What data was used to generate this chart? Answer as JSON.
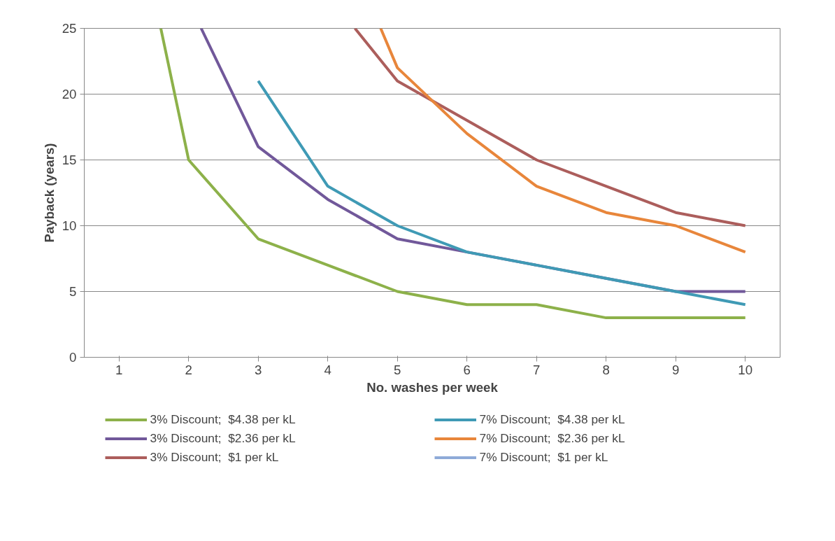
{
  "chart_data": {
    "type": "line",
    "xlabel": "No. washes per week",
    "ylabel": "Payback (years)",
    "xlim": [
      0.5,
      10.5
    ],
    "xticks": [
      1,
      2,
      3,
      4,
      5,
      6,
      7,
      8,
      9,
      10
    ],
    "ylim": [
      0,
      25
    ],
    "yticks": [
      0,
      5,
      10,
      15,
      20,
      25
    ],
    "grid": "y",
    "legend": "bottom",
    "marker": "none",
    "line_style": "solid",
    "series": [
      {
        "name": "3% Discount;  $4.38 per kL",
        "color": "#8db14a",
        "x": [
          1.6,
          2,
          3,
          4,
          5,
          6,
          7,
          8,
          9,
          10
        ],
        "values": [
          25,
          15,
          9,
          7,
          5,
          4,
          4,
          3,
          3,
          3
        ]
      },
      {
        "name": "3% Discount;  $2.36 per kL",
        "color": "#71589a",
        "x": [
          2.18,
          3,
          4,
          5,
          6,
          7,
          8,
          9,
          10
        ],
        "values": [
          25,
          16,
          12,
          9,
          8,
          7,
          6,
          5,
          5
        ]
      },
      {
        "name": "3% Discount;  $1 per kL",
        "color": "#ac5e5c",
        "x": [
          4.39,
          5,
          6,
          7,
          8,
          9,
          10
        ],
        "values": [
          25,
          21,
          18,
          15,
          13,
          11,
          10
        ]
      },
      {
        "name": "7% Discount;  $4.38 per kL",
        "color": "#3f9ab5",
        "x": [
          3,
          4,
          5,
          6,
          7,
          8,
          9,
          10
        ],
        "values": [
          21,
          13,
          10,
          8,
          7,
          6,
          5,
          4
        ]
      },
      {
        "name": "7% Discount;  $2.36 per kL",
        "color": "#e8863b",
        "x": [
          4.76,
          5,
          6,
          7,
          8,
          9,
          10
        ],
        "values": [
          25,
          22,
          17,
          13,
          11,
          10,
          8
        ]
      },
      {
        "name": "7% Discount;  $1 per kL",
        "color": "#8eaad8"
      }
    ]
  }
}
